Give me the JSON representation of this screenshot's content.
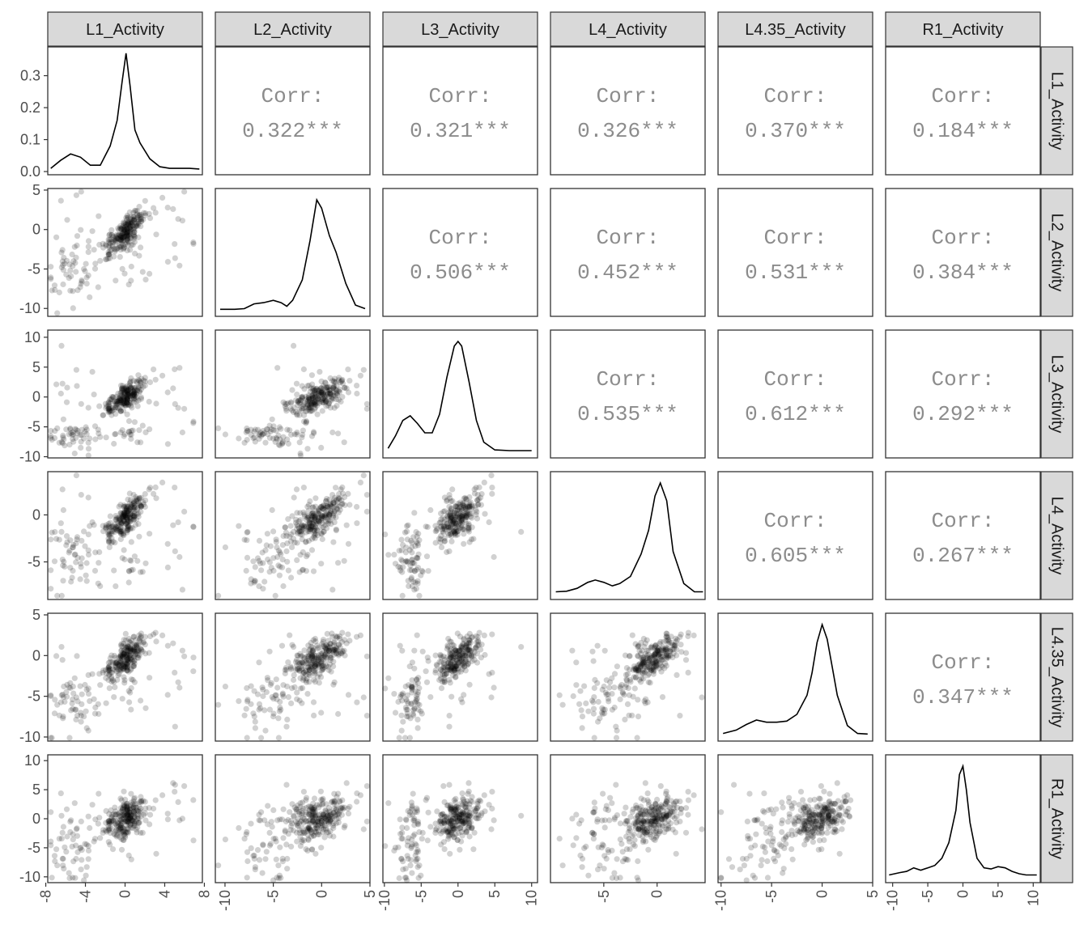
{
  "chart_data": {
    "type": "scatter-matrix",
    "variables": [
      "L1_Activity",
      "L2_Activity",
      "L3_Activity",
      "L4_Activity",
      "L4.35_Activity",
      "R1_Activity"
    ],
    "corr_label": "Corr:",
    "correlations": [
      {
        "row": "L1_Activity",
        "col": "L2_Activity",
        "value": "0.322***"
      },
      {
        "row": "L1_Activity",
        "col": "L3_Activity",
        "value": "0.321***"
      },
      {
        "row": "L1_Activity",
        "col": "L4_Activity",
        "value": "0.326***"
      },
      {
        "row": "L1_Activity",
        "col": "L4.35_Activity",
        "value": "0.370***"
      },
      {
        "row": "L1_Activity",
        "col": "R1_Activity",
        "value": "0.184***"
      },
      {
        "row": "L2_Activity",
        "col": "L3_Activity",
        "value": "0.506***"
      },
      {
        "row": "L2_Activity",
        "col": "L4_Activity",
        "value": "0.452***"
      },
      {
        "row": "L2_Activity",
        "col": "L4.35_Activity",
        "value": "0.531***"
      },
      {
        "row": "L2_Activity",
        "col": "R1_Activity",
        "value": "0.384***"
      },
      {
        "row": "L3_Activity",
        "col": "L4_Activity",
        "value": "0.535***"
      },
      {
        "row": "L3_Activity",
        "col": "L4.35_Activity",
        "value": "0.612***"
      },
      {
        "row": "L3_Activity",
        "col": "R1_Activity",
        "value": "0.292***"
      },
      {
        "row": "L4_Activity",
        "col": "L4.35_Activity",
        "value": "0.605***"
      },
      {
        "row": "L4_Activity",
        "col": "R1_Activity",
        "value": "0.267***"
      },
      {
        "row": "L4.35_Activity",
        "col": "R1_Activity",
        "value": "0.347***"
      }
    ],
    "x_axes": [
      {
        "variable": "L1_Activity",
        "range": [
          -7.8,
          7.8
        ],
        "ticks": [
          "-8",
          "-4",
          "0",
          "4",
          "8"
        ]
      },
      {
        "variable": "L2_Activity",
        "range": [
          -11,
          5
        ],
        "ticks": [
          "-10",
          "-5",
          "0",
          "5"
        ]
      },
      {
        "variable": "L3_Activity",
        "range": [
          -10.2,
          10.8
        ],
        "ticks": [
          "-10",
          "-5",
          "0",
          "5",
          "10"
        ]
      },
      {
        "variable": "L4_Activity",
        "range": [
          -10,
          4.5
        ],
        "ticks": [
          "-5",
          "0"
        ]
      },
      {
        "variable": "L4.35_Activity",
        "range": [
          -10.3,
          5
        ],
        "ticks": [
          "-10",
          "-5",
          "0",
          "5"
        ]
      },
      {
        "variable": "R1_Activity",
        "range": [
          -11,
          11
        ],
        "ticks": [
          "-10",
          "-5",
          "0",
          "5",
          "10"
        ]
      }
    ],
    "y_axes": [
      {
        "variable": "L1_Activity",
        "range": [
          -0.01,
          0.39
        ],
        "ticks": [
          "0.0",
          "0.1",
          "0.2",
          "0.3"
        ]
      },
      {
        "variable": "L2_Activity",
        "range": [
          -11,
          5.2
        ],
        "ticks": [
          "5",
          "0",
          "-5",
          "-10"
        ]
      },
      {
        "variable": "L3_Activity",
        "range": [
          -10.2,
          11.2
        ],
        "ticks": [
          "10",
          "5",
          "0",
          "-5",
          "-10"
        ]
      },
      {
        "variable": "L4_Activity",
        "range": [
          -9,
          4.6
        ],
        "ticks": [
          "0",
          "-5"
        ]
      },
      {
        "variable": "L4.35_Activity",
        "range": [
          -10.5,
          5.2
        ],
        "ticks": [
          "5",
          "0",
          "-5",
          "-10"
        ]
      },
      {
        "variable": "R1_Activity",
        "range": [
          -11,
          11
        ],
        "ticks": [
          "10",
          "5",
          "0",
          "-5",
          "-10"
        ]
      }
    ],
    "densities": [
      {
        "variable": "L1_Activity",
        "x": [
          -7.5,
          -6.5,
          -5.5,
          -4.5,
          -3.5,
          -2.5,
          -1.5,
          -0.8,
          -0.3,
          0.1,
          0.5,
          1,
          1.5,
          2.5,
          3.5,
          4.5,
          5.5,
          6.5,
          7.5
        ],
        "y": [
          0.01,
          0.035,
          0.055,
          0.045,
          0.02,
          0.02,
          0.08,
          0.16,
          0.28,
          0.37,
          0.27,
          0.13,
          0.09,
          0.04,
          0.015,
          0.01,
          0.01,
          0.01,
          0.008
        ]
      },
      {
        "variable": "L2_Activity",
        "x": [
          -10.5,
          -9,
          -8,
          -7,
          -6,
          -5,
          -4.2,
          -3.6,
          -3,
          -2,
          -1.2,
          -0.5,
          0,
          0.8,
          1.5,
          2.5,
          3.5,
          4.5
        ],
        "y": [
          0.005,
          0.005,
          0.01,
          0.05,
          0.06,
          0.08,
          0.06,
          0.03,
          0.08,
          0.25,
          0.58,
          0.92,
          0.85,
          0.62,
          0.48,
          0.22,
          0.04,
          0.01
        ]
      },
      {
        "variable": "L3_Activity",
        "x": [
          -9.5,
          -8.5,
          -7.5,
          -6.5,
          -5.5,
          -4.5,
          -3.5,
          -2.5,
          -1.5,
          -0.5,
          0,
          0.5,
          1.5,
          2.5,
          3.5,
          5,
          7,
          10
        ],
        "y": [
          0.02,
          0.1,
          0.2,
          0.23,
          0.18,
          0.12,
          0.12,
          0.24,
          0.48,
          0.68,
          0.71,
          0.68,
          0.45,
          0.2,
          0.06,
          0.01,
          0.005,
          0.005
        ]
      },
      {
        "variable": "L4_Activity",
        "x": [
          -9.5,
          -8.5,
          -7.5,
          -6.5,
          -5.8,
          -5,
          -4.2,
          -3.5,
          -2.5,
          -1.5,
          -0.8,
          -0.2,
          0.3,
          0.9,
          1.5,
          2.5,
          3.5,
          4.3
        ],
        "y": [
          0.01,
          0.015,
          0.04,
          0.09,
          0.11,
          0.09,
          0.06,
          0.08,
          0.14,
          0.33,
          0.53,
          0.82,
          0.93,
          0.78,
          0.35,
          0.08,
          0.01,
          0.01
        ]
      },
      {
        "variable": "L4.35_Activity",
        "x": [
          -9.8,
          -8.5,
          -7.5,
          -6.5,
          -5.5,
          -4.5,
          -3.5,
          -2.5,
          -1.5,
          -1,
          -0.5,
          0,
          0.5,
          1,
          1.5,
          2.5,
          3.5,
          4.5
        ],
        "y": [
          0.01,
          0.04,
          0.09,
          0.13,
          0.11,
          0.11,
          0.12,
          0.18,
          0.35,
          0.55,
          0.82,
          0.98,
          0.85,
          0.6,
          0.35,
          0.08,
          0.01,
          0.005
        ]
      },
      {
        "variable": "R1_Activity",
        "x": [
          -10.5,
          -9,
          -8,
          -7,
          -6,
          -5,
          -4,
          -3,
          -2,
          -1,
          -0.5,
          0,
          0.5,
          1,
          2,
          3,
          4,
          5,
          6,
          7,
          8,
          9,
          10.5
        ],
        "y": [
          0.01,
          0.03,
          0.04,
          0.07,
          0.05,
          0.07,
          0.09,
          0.15,
          0.28,
          0.55,
          0.85,
          0.92,
          0.72,
          0.45,
          0.15,
          0.07,
          0.06,
          0.08,
          0.07,
          0.04,
          0.02,
          0.01,
          0.01
        ]
      }
    ]
  }
}
